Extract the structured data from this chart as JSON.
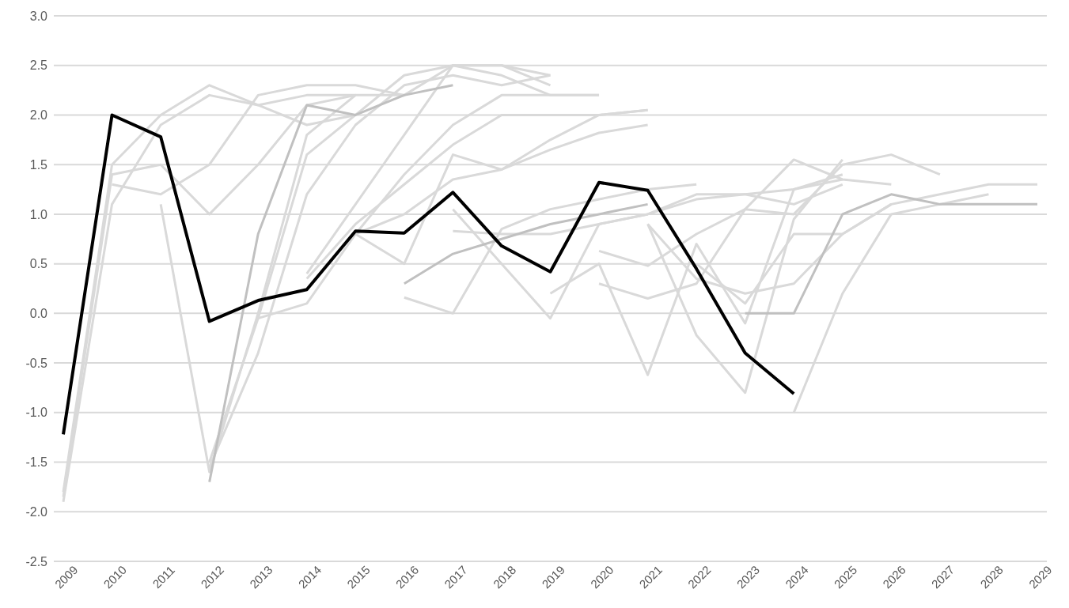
{
  "chart_data": {
    "type": "line",
    "categories": [
      "2009",
      "2010",
      "2011",
      "2012",
      "2013",
      "2014",
      "2015",
      "2016",
      "2017",
      "2018",
      "2019",
      "2020",
      "2021",
      "2022",
      "2023",
      "2024",
      "2025",
      "2026",
      "2027",
      "2028",
      "2029"
    ],
    "ylim": [
      -2.5,
      3.0
    ],
    "yticks": [
      {
        "value": -2.5,
        "label": "-2.5"
      },
      {
        "value": -2,
        "label": "-2.0"
      },
      {
        "value": -1.5,
        "label": "-1.5"
      },
      {
        "value": -1,
        "label": "-1.0"
      },
      {
        "value": -0.5,
        "label": "-0.5"
      },
      {
        "value": 0,
        "label": "0.0"
      },
      {
        "value": 0.5,
        "label": "0.5"
      },
      {
        "value": 1,
        "label": "1.0"
      },
      {
        "value": 1.5,
        "label": "1.5"
      },
      {
        "value": 2,
        "label": "2.0"
      },
      {
        "value": 2.5,
        "label": "2.5"
      },
      {
        "value": 3,
        "label": "3.0"
      }
    ],
    "grid": "y",
    "marker": "none",
    "line_style": "solid",
    "series": [
      {
        "color": "#d9d9d9",
        "values": [
          -1.8,
          1.5,
          2.0,
          2.3,
          2.1,
          1.9,
          2.0,
          null,
          null,
          null,
          null,
          null,
          null,
          null,
          null,
          null,
          null,
          null,
          null,
          null,
          null
        ]
      },
      {
        "color": "#d9d9d9",
        "values": [
          -1.9,
          1.1,
          1.9,
          2.2,
          2.1,
          2.2,
          2.2,
          null,
          null,
          null,
          null,
          null,
          null,
          null,
          null,
          null,
          null,
          null,
          null,
          null,
          null
        ]
      },
      {
        "color": "#d9d9d9",
        "values": [
          -1.85,
          1.4,
          1.5,
          1.0,
          1.5,
          2.1,
          2.2,
          null,
          null,
          null,
          null,
          null,
          null,
          null,
          null,
          null,
          null,
          null,
          null,
          null,
          null
        ]
      },
      {
        "color": "#d9d9d9",
        "values": [
          null,
          1.3,
          1.2,
          1.5,
          2.2,
          2.3,
          2.3,
          2.2,
          null,
          null,
          null,
          null,
          null,
          null,
          null,
          null,
          null,
          null,
          null,
          null,
          null
        ]
      },
      {
        "color": "#d9d9d9",
        "values": [
          null,
          null,
          1.1,
          -1.6,
          0.0,
          1.8,
          2.2,
          2.2,
          2.5,
          2.5,
          2.4,
          null,
          null,
          null,
          null,
          null,
          null,
          null,
          null,
          null,
          null
        ]
      },
      {
        "color": "#d9d9d9",
        "values": [
          null,
          null,
          null,
          -1.5,
          -0.05,
          1.6,
          2.0,
          2.4,
          2.5,
          2.4,
          2.2,
          2.2,
          null,
          null,
          null,
          null,
          null,
          null,
          null,
          null,
          null
        ]
      },
      {
        "color": "#d9d9d9",
        "values": [
          null,
          null,
          null,
          -1.55,
          -0.4,
          1.2,
          1.9,
          2.3,
          2.4,
          2.3,
          2.4,
          null,
          null,
          null,
          null,
          null,
          null,
          null,
          null,
          null,
          null
        ]
      },
      {
        "color": "#d9d9d9",
        "values": [
          null,
          null,
          null,
          null,
          -0.05,
          0.1,
          0.8,
          1.4,
          1.9,
          2.2,
          2.2,
          2.2,
          null,
          null,
          null,
          null,
          null,
          null,
          null,
          null,
          null
        ]
      },
      {
        "color": "#d9d9d9",
        "values": [
          null,
          null,
          null,
          null,
          null,
          0.4,
          1.1,
          1.8,
          2.5,
          2.5,
          2.3,
          null,
          null,
          null,
          null,
          null,
          null,
          null,
          null,
          null,
          null
        ]
      },
      {
        "color": "#d9d9d9",
        "values": [
          null,
          null,
          null,
          null,
          null,
          0.35,
          0.9,
          1.3,
          1.7,
          2.0,
          2.0,
          2.0,
          2.05,
          null,
          null,
          null,
          null,
          null,
          null,
          null,
          null
        ]
      },
      {
        "color": "#d9d9d9",
        "values": [
          null,
          null,
          null,
          null,
          null,
          null,
          0.8,
          1.0,
          1.35,
          1.45,
          1.75,
          2.0,
          2.05,
          null,
          null,
          null,
          null,
          null,
          null,
          null,
          null
        ]
      },
      {
        "color": "#d9d9d9",
        "values": [
          null,
          null,
          null,
          null,
          null,
          null,
          0.8,
          0.5,
          1.6,
          1.45,
          1.65,
          1.82,
          1.9,
          null,
          null,
          null,
          null,
          null,
          null,
          null,
          null
        ]
      },
      {
        "color": "#d9d9d9",
        "values": [
          null,
          null,
          null,
          null,
          null,
          null,
          null,
          0.16,
          0.0,
          0.85,
          1.05,
          1.15,
          1.25,
          1.3,
          null,
          null,
          null,
          null,
          null,
          null,
          null
        ]
      },
      {
        "color": "#d9d9d9",
        "values": [
          null,
          null,
          null,
          null,
          null,
          null,
          null,
          null,
          0.83,
          0.8,
          0.8,
          0.9,
          1.0,
          1.15,
          1.2,
          1.25,
          1.35,
          null,
          null,
          null,
          null
        ]
      },
      {
        "color": "#d9d9d9",
        "values": [
          null,
          null,
          null,
          null,
          null,
          null,
          null,
          null,
          1.05,
          0.5,
          -0.05,
          0.9,
          1.0,
          1.2,
          1.2,
          1.1,
          1.3,
          null,
          null,
          null,
          null
        ]
      },
      {
        "color": "#d9d9d9",
        "values": [
          null,
          null,
          null,
          null,
          null,
          null,
          null,
          null,
          null,
          null,
          0.2,
          0.5,
          -0.62,
          0.7,
          -0.1,
          1.25,
          1.4,
          null,
          null,
          null,
          null
        ]
      },
      {
        "color": "#d9d9d9",
        "values": [
          null,
          null,
          null,
          null,
          null,
          null,
          null,
          null,
          null,
          null,
          null,
          0.63,
          0.48,
          0.8,
          1.05,
          1.0,
          1.5,
          1.6,
          1.4,
          null,
          null
        ]
      },
      {
        "color": "#d9d9d9",
        "values": [
          null,
          null,
          null,
          null,
          null,
          null,
          null,
          null,
          null,
          null,
          null,
          null,
          0.9,
          0.35,
          0.2,
          0.3,
          0.8,
          1.1,
          1.2,
          1.3,
          1.3
        ]
      },
      {
        "color": "#d9d9d9",
        "values": [
          null,
          null,
          null,
          null,
          null,
          null,
          null,
          null,
          null,
          null,
          null,
          null,
          0.9,
          -0.22,
          -0.8,
          0.95,
          1.55,
          null,
          null,
          null,
          null
        ]
      },
      {
        "color": "#d9d9d9",
        "values": [
          null,
          null,
          null,
          null,
          null,
          null,
          null,
          null,
          null,
          null,
          null,
          0.3,
          0.15,
          0.3,
          1.05,
          1.55,
          1.35,
          1.3,
          null,
          null,
          null
        ]
      },
      {
        "color": "#d9d9d9",
        "values": [
          null,
          null,
          null,
          null,
          null,
          null,
          null,
          null,
          null,
          null,
          null,
          null,
          null,
          0.5,
          0.1,
          0.8,
          0.8,
          1.1,
          null,
          null,
          null
        ]
      },
      {
        "color": "#d9d9d9",
        "values": [
          null,
          null,
          null,
          null,
          null,
          null,
          null,
          null,
          null,
          null,
          null,
          null,
          null,
          null,
          null,
          -1.0,
          0.2,
          1.0,
          1.1,
          1.2,
          null
        ]
      },
      {
        "color": "#c0c0c0",
        "values": [
          null,
          null,
          null,
          -1.7,
          0.8,
          2.1,
          2.0,
          2.2,
          2.3,
          null,
          null,
          null,
          null,
          null,
          null,
          null,
          null,
          null,
          null,
          null,
          null
        ]
      },
      {
        "color": "#c0c0c0",
        "values": [
          null,
          null,
          null,
          null,
          null,
          null,
          null,
          0.3,
          0.6,
          0.75,
          0.9,
          1.0,
          1.1,
          null,
          null,
          null,
          null,
          null,
          null,
          null,
          null
        ]
      },
      {
        "color": "#c0c0c0",
        "values": [
          null,
          null,
          null,
          null,
          null,
          null,
          null,
          null,
          null,
          null,
          null,
          null,
          null,
          null,
          0.0,
          0.0,
          1.0,
          1.2,
          1.1,
          1.1,
          1.1
        ]
      },
      {
        "color": "#000000",
        "values": [
          -1.22,
          2.0,
          1.78,
          -0.08,
          0.13,
          0.24,
          0.83,
          0.81,
          1.22,
          0.68,
          0.42,
          1.32,
          1.24,
          0.45,
          -0.4,
          -0.81,
          null,
          null,
          null,
          null,
          null
        ]
      }
    ]
  }
}
